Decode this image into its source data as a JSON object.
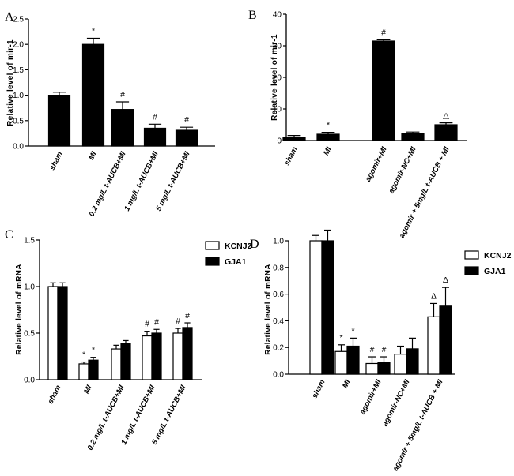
{
  "chart_data": [
    {
      "type": "bar",
      "panel": "A",
      "title": "",
      "ylabel": "Relative level of mir-1",
      "xlabel": "",
      "ylim": [
        0,
        2.5
      ],
      "yticks": [
        "0.0",
        "0.5",
        "1.0",
        "1.5",
        "2.0",
        "2.5"
      ],
      "categories": [
        "sham",
        "MI",
        "0.2 mg/L t-AUCB+MI",
        "1 mg/L t-AUCB+MI",
        "5 mg/L t-AUCB+MI"
      ],
      "series": [
        {
          "name": "mir-1",
          "color": "#000000",
          "values": [
            1.0,
            2.0,
            0.72,
            0.35,
            0.31
          ],
          "errors": [
            0.06,
            0.12,
            0.15,
            0.08,
            0.06
          ],
          "annotations": [
            "",
            "*",
            "#",
            "#",
            "#"
          ]
        }
      ]
    },
    {
      "type": "bar",
      "panel": "B",
      "title": "",
      "ylabel": "Relative level of mir-1",
      "xlabel": "",
      "ylim": [
        0,
        40
      ],
      "yticks": [
        "0",
        "10",
        "20",
        "30",
        "40"
      ],
      "categories": [
        "sham",
        "MI",
        "agomir+MI",
        "agomir-NC+MI",
        "agomir + 5mg/L t-AUCB + MI"
      ],
      "series": [
        {
          "name": "mir-1",
          "color": "#000000",
          "values": [
            1.0,
            2.0,
            31.5,
            2.1,
            5.0
          ],
          "errors": [
            0.6,
            0.6,
            0.4,
            0.6,
            0.6
          ],
          "annotations": [
            "",
            "*",
            "#",
            "",
            "△"
          ]
        }
      ]
    },
    {
      "type": "bar",
      "panel": "C",
      "title": "",
      "ylabel": "Relative level of mRNA",
      "xlabel": "",
      "ylim": [
        0,
        1.5
      ],
      "yticks": [
        "0.0",
        "0.5",
        "1.0",
        "1.5"
      ],
      "categories": [
        "sham",
        "MI",
        "0.2 mg/L t-AUCB+MI",
        "1 mg/L t-AUCB+MI",
        "5 mg/L t-AUCB+MI"
      ],
      "legend_position": "top-right",
      "series": [
        {
          "name": "KCNJ2",
          "color": "#ffffff",
          "values": [
            1.0,
            0.17,
            0.33,
            0.47,
            0.5
          ],
          "errors": [
            0.04,
            0.02,
            0.04,
            0.05,
            0.05
          ],
          "annotations": [
            "",
            "*",
            "",
            "#",
            "#"
          ]
        },
        {
          "name": "GJA1",
          "color": "#000000",
          "values": [
            1.0,
            0.21,
            0.39,
            0.5,
            0.56
          ],
          "errors": [
            0.04,
            0.03,
            0.03,
            0.04,
            0.05
          ],
          "annotations": [
            "",
            "*",
            "",
            "#",
            "#"
          ]
        }
      ]
    },
    {
      "type": "bar",
      "panel": "D",
      "title": "",
      "ylabel": "Relative level of mRNA",
      "xlabel": "",
      "ylim": [
        0,
        1.0
      ],
      "yticks": [
        "0.0",
        "0.2",
        "0.4",
        "0.6",
        "0.8",
        "1.0"
      ],
      "categories": [
        "sham",
        "MI",
        "agomir+MI",
        "agomir-NC+MI",
        "agomir + 5mg/L t-AUCB + MI"
      ],
      "legend_position": "top-right",
      "series": [
        {
          "name": "KCNJ2",
          "color": "#ffffff",
          "values": [
            1.0,
            0.17,
            0.08,
            0.15,
            0.43
          ],
          "errors": [
            0.04,
            0.05,
            0.05,
            0.06,
            0.1
          ],
          "annotations": [
            "",
            "*",
            "#",
            "",
            "Δ"
          ]
        },
        {
          "name": "GJA1",
          "color": "#000000",
          "values": [
            1.0,
            0.21,
            0.09,
            0.19,
            0.51
          ],
          "errors": [
            0.08,
            0.06,
            0.04,
            0.08,
            0.14
          ],
          "annotations": [
            "",
            "*",
            "#",
            "",
            "Δ"
          ]
        }
      ]
    }
  ]
}
